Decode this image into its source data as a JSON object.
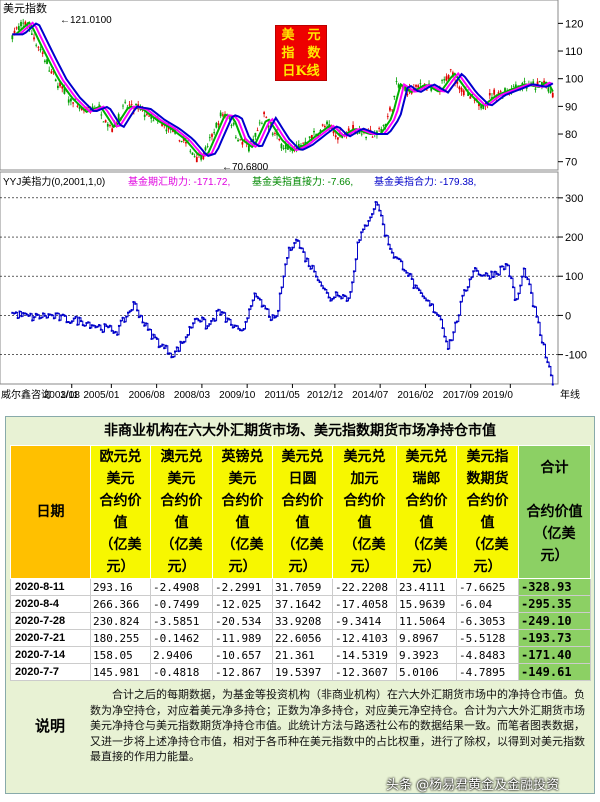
{
  "chart_data": [
    {
      "type": "candlestick-line",
      "title": "美元指数日K线",
      "panel_label": "美元指数",
      "y_ticks": [
        70,
        80,
        90,
        100,
        110,
        120
      ],
      "ylim": [
        67,
        127
      ],
      "annotations": {
        "high": "121.0100",
        "low": "70.6800"
      },
      "x": [
        2001.5,
        2002.0,
        2002.5,
        2003.0,
        2003.5,
        2004.0,
        2004.5,
        2005.0,
        2005.5,
        2006.0,
        2006.5,
        2007.0,
        2007.5,
        2008.0,
        2008.3,
        2008.6,
        2008.9,
        2009.2,
        2009.5,
        2009.9,
        2010.4,
        2010.9,
        2011.3,
        2011.7,
        2012.2,
        2012.6,
        2013.0,
        2013.5,
        2014.0,
        2014.4,
        2014.8,
        2015.1,
        2015.5,
        2016.0,
        2016.5,
        2017.0,
        2017.5,
        2018.0,
        2018.5,
        2019.0,
        2019.5,
        2020.0,
        2020.3,
        2020.6
      ],
      "values": [
        116,
        120.5,
        110,
        100,
        93,
        88,
        90,
        82,
        90,
        89,
        85,
        82,
        78,
        72,
        73,
        80,
        87,
        86,
        78,
        75,
        86,
        78,
        74,
        76,
        80,
        83,
        79,
        82,
        80,
        80,
        86,
        98,
        95,
        98,
        95,
        102,
        95,
        90,
        94,
        96,
        98,
        97,
        99,
        93
      ]
    },
    {
      "type": "line",
      "title": "YYJ美指力(0,2001,1,0)",
      "legend": [
        {
          "name": "基金期汇助力:",
          "value": "-171.72,",
          "color": "#e000e0"
        },
        {
          "name": "基金美指直接力:",
          "value": "-7.66,",
          "color": "#008800"
        },
        {
          "name": "基金美指合力:",
          "value": "-179.38,",
          "color": "#0000c8"
        }
      ],
      "y_ticks": [
        -100,
        0,
        100,
        200,
        300
      ],
      "ylim": [
        -175,
        320
      ],
      "x_ticks": [
        "2003/08",
        "2005/01",
        "2006/08",
        "2008/03",
        "2009/10",
        "2011/05",
        "2012/12",
        "2014/07",
        "2016/02",
        "2017/09",
        "2019/0"
      ],
      "x_tick_years": [
        2003.6,
        2005.0,
        2006.6,
        2008.2,
        2009.8,
        2011.4,
        2012.9,
        2014.5,
        2016.1,
        2017.7,
        2019.1
      ],
      "x": [
        2001.5,
        2002.2,
        2002.8,
        2003.4,
        2004.0,
        2004.6,
        2005.2,
        2005.8,
        2006.3,
        2006.8,
        2007.2,
        2007.6,
        2008.0,
        2008.4,
        2008.8,
        2009.2,
        2009.6,
        2010.0,
        2010.4,
        2010.8,
        2011.2,
        2011.5,
        2011.9,
        2012.3,
        2012.7,
        2013.0,
        2013.4,
        2013.7,
        2014.1,
        2014.4,
        2014.7,
        2015.0,
        2015.4,
        2015.8,
        2016.2,
        2016.6,
        2016.9,
        2017.1,
        2017.4,
        2017.8,
        2018.2,
        2018.6,
        2019.0,
        2019.3,
        2019.6,
        2020.0,
        2020.3,
        2020.6
      ],
      "values": [
        5,
        -5,
        0,
        -10,
        -15,
        -30,
        -40,
        30,
        -40,
        -80,
        -100,
        -60,
        0,
        -30,
        10,
        -20,
        -50,
        50,
        20,
        -20,
        150,
        200,
        140,
        100,
        40,
        60,
        40,
        180,
        250,
        290,
        200,
        150,
        120,
        60,
        30,
        0,
        -80,
        -40,
        40,
        120,
        100,
        110,
        130,
        30,
        120,
        0,
        -90,
        -179
      ]
    }
  ],
  "chart_footer": {
    "source": "威尔鑫咨询",
    "x_first": "1/11",
    "x_last": "年线"
  },
  "table": {
    "title": "非商业机构在六大外汇期货市场、美元指数期货市场净持仓市值",
    "date_header": "日期",
    "columns": [
      {
        "name": "欧元兑美元",
        "line1": "欧元兑",
        "line2": "美元",
        "sub1": "合约价",
        "sub2": "值",
        "unit1": "（亿美",
        "unit2": "元）"
      },
      {
        "name": "澳元兑美元",
        "line1": "澳元兑",
        "line2": "美元",
        "sub1": "合约价",
        "sub2": "值",
        "unit1": "（亿美",
        "unit2": "元）"
      },
      {
        "name": "英镑兑美元",
        "line1": "英镑兑",
        "line2": "美元",
        "sub1": "合约价",
        "sub2": "值",
        "unit1": "（亿美",
        "unit2": "元）"
      },
      {
        "name": "美元兑日圆",
        "line1": "美元兑",
        "line2": "日圆",
        "sub1": "合约价",
        "sub2": "值",
        "unit1": "（亿美",
        "unit2": "元）"
      },
      {
        "name": "美元兑加元",
        "line1": "美元兑",
        "line2": "加元",
        "sub1": "合约价",
        "sub2": "值",
        "unit1": "（亿美",
        "unit2": "元）"
      },
      {
        "name": "美元兑瑞郎",
        "line1": "美元兑",
        "line2": "瑞郎",
        "sub1": "合约价",
        "sub2": "值",
        "unit1": "（亿美",
        "unit2": "元）"
      },
      {
        "name": "美元指数期货",
        "line1": "美元指",
        "line2": "数期货",
        "sub1": "合约价",
        "sub2": "值",
        "unit1": "（亿美",
        "unit2": "元）"
      }
    ],
    "total_header": {
      "line1": "合计",
      "sub": "合约价值",
      "unit1": "（亿美",
      "unit2": "元）"
    },
    "rows": [
      {
        "date": "2020-8-11",
        "values": [
          "293.16",
          "-2.4908",
          "-2.2991",
          "31.7059",
          "-22.2208",
          "23.4111",
          "-7.6625"
        ],
        "total": "-328.93"
      },
      {
        "date": "2020-8-4",
        "values": [
          "266.366",
          "-0.7499",
          "-12.025",
          "37.1642",
          "-17.4058",
          "15.9639",
          "-6.04"
        ],
        "total": "-295.35"
      },
      {
        "date": "2020-7-28",
        "values": [
          "230.824",
          "-3.5851",
          "-20.534",
          "33.9208",
          "-9.3414",
          "11.5064",
          "-6.3053"
        ],
        "total": "-249.10"
      },
      {
        "date": "2020-7-21",
        "values": [
          "180.255",
          "-0.1462",
          "-11.989",
          "22.6056",
          "-12.4103",
          "9.8967",
          "-5.5128"
        ],
        "total": "-193.73"
      },
      {
        "date": "2020-7-14",
        "values": [
          "158.05",
          "2.9406",
          "-10.657",
          "21.361",
          "-14.5319",
          "9.3923",
          "-4.8483"
        ],
        "total": "-171.40"
      },
      {
        "date": "2020-7-7",
        "values": [
          "145.981",
          "-0.4818",
          "-12.867",
          "19.5397",
          "-12.3607",
          "5.0106",
          "-4.7895"
        ],
        "total": "-149.61"
      }
    ],
    "note_label": "说明",
    "note": "合计之后的每期数据，为基金等投资机构（非商业机构）在六大外汇期货市场中的净持仓市值。负数为净空持仓，对应着美元净多持仓；正数为净多持仓，对应美元净空持仓。合计为六大外汇期货市场美元净持仓与美元指数期货净持仓市值。此统计方法与路透社公布的数据结果一致。而笔者图表数据，又进一步将上述净持仓市值，相对于各币种在美元指数中的占比权重，进行了除权，以得到对美元指数最直接的作用力能量。"
  },
  "watermark": "头条 @杨易君黄金及金融投资"
}
